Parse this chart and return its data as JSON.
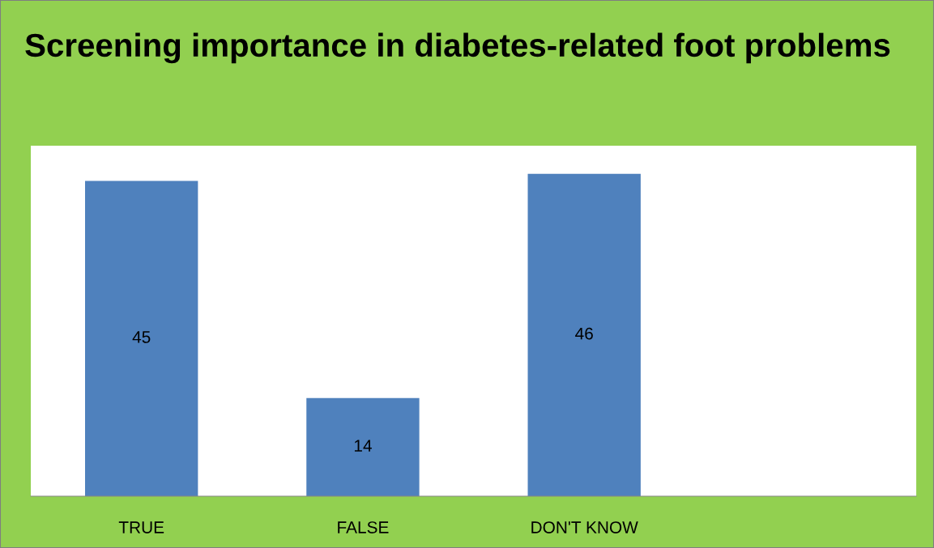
{
  "chart_data": {
    "type": "bar",
    "title": "Screening importance in diabetes-related foot problems",
    "categories": [
      "TRUE",
      "FALSE",
      "DON'T KNOW",
      null
    ],
    "series": [
      {
        "color": "#4f81bd",
        "values": [
          45,
          14,
          46,
          null
        ]
      }
    ],
    "ylim": [
      0,
      50
    ],
    "tick_labels": "x",
    "data_labels": true,
    "grid": false,
    "legend": false
  }
}
